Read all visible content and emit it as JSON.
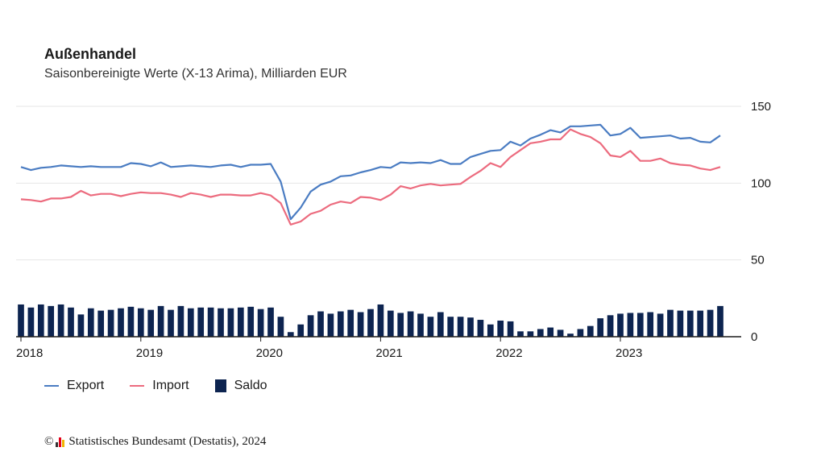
{
  "title": "Außenhandel",
  "subtitle": "Saisonbereinigte Werte (X-13 Arima), Milliarden EUR",
  "source": {
    "copyright": "©",
    "text": "Statistisches Bundesamt (Destatis), 2024"
  },
  "colors": {
    "export": "#4a7cc2",
    "import": "#ec6b7e",
    "saldo": "#0d2450",
    "grid": "#e6e6e6",
    "axis": "#1a1a1a"
  },
  "chart_data": {
    "type": "line",
    "title": "Außenhandel",
    "subtitle": "Saisonbereinigte Werte (X-13 Arima), Milliarden EUR",
    "x_start": "2018-01",
    "x_labels": [
      "2018",
      "2019",
      "2020",
      "2021",
      "2022",
      "2023"
    ],
    "ylim": [
      0,
      150
    ],
    "y_ticks": [
      0,
      50,
      100,
      150
    ],
    "grid": true,
    "legend": "bottom-left",
    "series": [
      {
        "name": "Export",
        "type": "line",
        "values": [
          110.5,
          108.5,
          110,
          110.5,
          111.5,
          111,
          110.5,
          111,
          110.5,
          110.5,
          110.5,
          113,
          112.5,
          111,
          113.5,
          110.5,
          111,
          111.5,
          111,
          110.5,
          111.5,
          112,
          110.5,
          112,
          112,
          112.5,
          101,
          76.5,
          84,
          94.5,
          99,
          101,
          104.5,
          105,
          107,
          108.5,
          110.5,
          110,
          113.5,
          113,
          113.5,
          113,
          115,
          112.5,
          112.5,
          117,
          119,
          121,
          121.5,
          127,
          124.5,
          129,
          131.5,
          134.5,
          133,
          137,
          137,
          137.5,
          138,
          131,
          132,
          136,
          129.5,
          130,
          130.5,
          131,
          129,
          129.5,
          127,
          126.5,
          131
        ]
      },
      {
        "name": "Import",
        "type": "line",
        "values": [
          89.5,
          89,
          88,
          90,
          90,
          91,
          95,
          92,
          93,
          93,
          91.5,
          93,
          94,
          93.5,
          93.5,
          92.5,
          91,
          93.5,
          92.5,
          91,
          92.5,
          92.5,
          92,
          92,
          93.5,
          92,
          87,
          73,
          75,
          80,
          82,
          86,
          88,
          87,
          91,
          90.5,
          89,
          92.5,
          98,
          96.5,
          98.5,
          99.5,
          98.5,
          99,
          99.5,
          104,
          108,
          113,
          110.5,
          117,
          121.5,
          126,
          127,
          128.5,
          128.5,
          135,
          132,
          130,
          126,
          118,
          117,
          121,
          114.5,
          114.5,
          116,
          113,
          112,
          111.5,
          109.5,
          108.5,
          110.5
        ]
      },
      {
        "name": "Saldo",
        "type": "bar",
        "values": [
          21,
          19,
          21,
          20,
          21,
          19,
          14.5,
          18.5,
          17,
          17.5,
          18.5,
          19.5,
          18.5,
          17.5,
          20,
          17.5,
          20,
          18.5,
          19,
          19,
          18.5,
          18.5,
          19,
          19.5,
          18,
          19,
          13,
          3,
          8,
          14,
          16.5,
          15,
          16.5,
          17.5,
          16,
          18,
          21,
          17,
          15.5,
          16.5,
          15,
          13,
          16,
          13,
          13,
          12.5,
          11,
          8,
          10.5,
          10,
          3.5,
          3.5,
          5,
          6,
          4.5,
          2,
          5,
          7,
          12,
          14,
          15,
          15.5,
          15.5,
          16,
          15,
          17.5,
          17,
          17,
          17,
          17.5,
          20
        ]
      }
    ]
  }
}
